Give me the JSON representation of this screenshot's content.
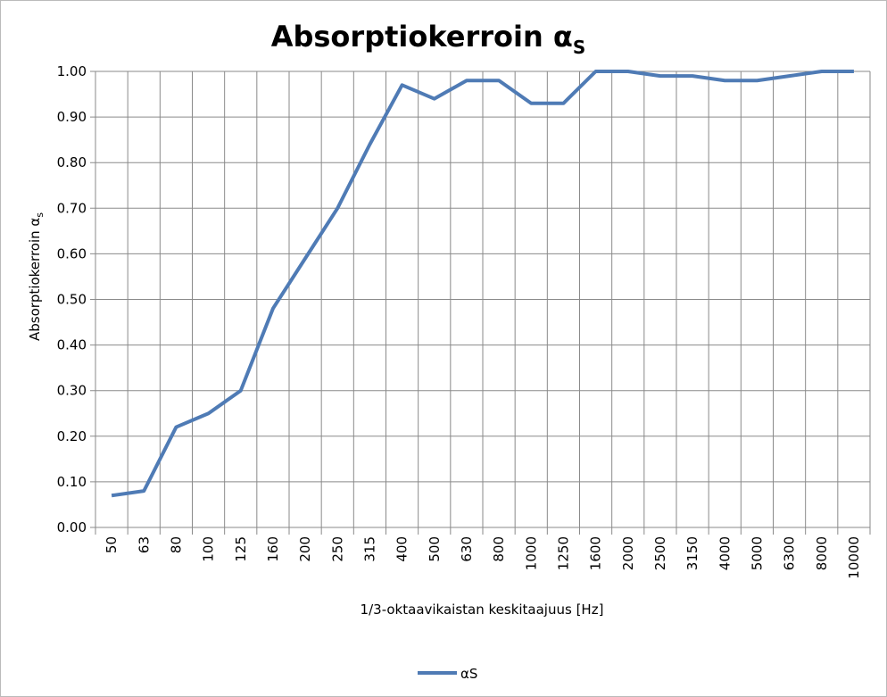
{
  "chart_data": {
    "type": "line",
    "title": "Absorptiokerroin α",
    "title_subscript": "S",
    "y_label": "Absorptiokerroin α",
    "y_label_subscript": "s",
    "x_label": "1/3-oktaavikaistan keskitaajuus [Hz]",
    "categories": [
      "50",
      "63",
      "80",
      "100",
      "125",
      "160",
      "200",
      "250",
      "315",
      "400",
      "500",
      "630",
      "800",
      "1000",
      "1250",
      "1600",
      "2000",
      "2500",
      "3150",
      "4000",
      "5000",
      "6300",
      "8000",
      "10000"
    ],
    "series": [
      {
        "name": "αS",
        "color": "#4f7bb5",
        "values": [
          0.07,
          0.08,
          0.22,
          0.25,
          0.3,
          0.48,
          0.59,
          0.7,
          0.84,
          0.97,
          0.94,
          0.98,
          0.98,
          0.93,
          0.93,
          1.0,
          1.0,
          0.99,
          0.99,
          0.98,
          0.98,
          0.99,
          1.0,
          1.0
        ]
      }
    ],
    "ylim": [
      0,
      1
    ],
    "yticks": [
      {
        "value": 0,
        "label": "0.00"
      },
      {
        "value": 0.1,
        "label": "0.10"
      },
      {
        "value": 0.2,
        "label": "0.20"
      },
      {
        "value": 0.3,
        "label": "0.30"
      },
      {
        "value": 0.4,
        "label": "0.40"
      },
      {
        "value": 0.5,
        "label": "0.50"
      },
      {
        "value": 0.6,
        "label": "0.60"
      },
      {
        "value": 0.7,
        "label": "0.70"
      },
      {
        "value": 0.8,
        "label": "0.80"
      },
      {
        "value": 0.9,
        "label": "0.90"
      },
      {
        "value": 1,
        "label": "1.00"
      }
    ],
    "grid": true,
    "legend": "bottom"
  }
}
